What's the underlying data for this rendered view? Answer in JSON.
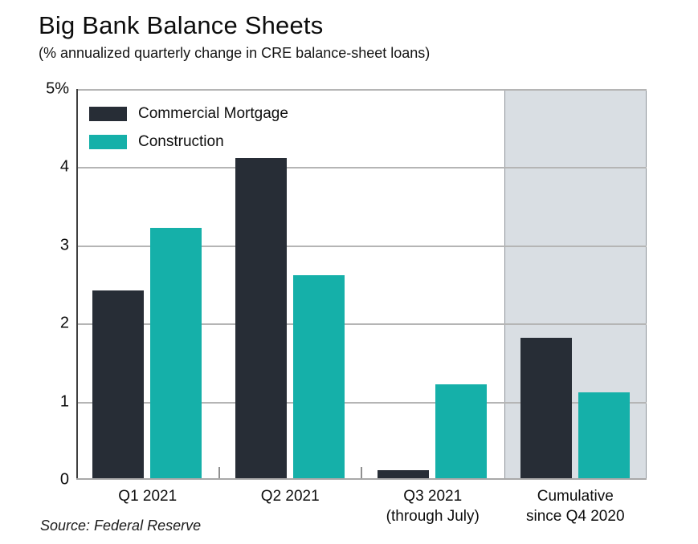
{
  "header": {
    "title": "Big Bank Balance Sheets",
    "subtitle": "(% annualized quarterly change in CRE balance-sheet loans)"
  },
  "source_note": "Source: Federal Reserve",
  "colors": {
    "commercial_mortgage": "#272d36",
    "construction": "#15b0a9",
    "highlight_fill": "#d9dee3",
    "highlight_border": "#8e949a",
    "gridline": "#b5b5b5",
    "y_axis": "#3f3f3f",
    "baseline": "#a8a8a8",
    "category_tick": "#8f8f8f"
  },
  "chart_data": {
    "type": "bar",
    "title": "Big Bank Balance Sheets",
    "subtitle": "(% annualized quarterly change in CRE balance-sheet loans)",
    "categories": [
      [
        "Q1 2021"
      ],
      [
        "Q2 2021"
      ],
      [
        "Q3 2021",
        "(through July)"
      ],
      [
        "Cumulative",
        "since Q4 2020"
      ]
    ],
    "series": [
      {
        "name": "Commercial Mortgage",
        "color_key": "commercial_mortgage",
        "values": [
          2.4,
          4.1,
          0.1,
          1.8
        ]
      },
      {
        "name": "Construction",
        "color_key": "construction",
        "values": [
          3.2,
          2.6,
          1.2,
          1.1
        ]
      }
    ],
    "ylim": [
      0,
      5
    ],
    "ytick_labels": [
      "5%",
      "4",
      "3",
      "2",
      "1",
      "0"
    ],
    "ytick_values": [
      5,
      4,
      3,
      2,
      1,
      0
    ],
    "grid": "horizontal",
    "legend_position": "top-left-inside",
    "highlighted_category_index": 3,
    "source": "Source: Federal Reserve"
  }
}
